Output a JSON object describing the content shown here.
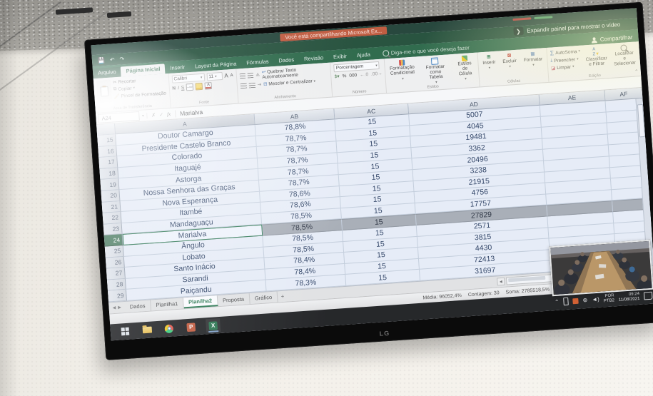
{
  "share_overlay": {
    "sharing_badge": "Você está compartilhando Microsoft Ex...",
    "expand_label": "Expandir painel para mostrar o vídeo",
    "share_label": "Compartilhar"
  },
  "ribbon": {
    "tabs": [
      "Arquivo",
      "Página Inicial",
      "Inserir",
      "Layout da Página",
      "Fórmulas",
      "Dados",
      "Revisão",
      "Exibir",
      "Ajuda"
    ],
    "active_tab": "Página Inicial",
    "tell_me": "Diga-me o que você deseja fazer",
    "clipboard": {
      "cut": "Recortar",
      "copy": "Copiar",
      "painter": "Pincel de Formatação",
      "group": "Área de Transferência"
    },
    "font": {
      "name": "Calibri",
      "size": "11",
      "bold": "N",
      "italic": "I",
      "underline": "S",
      "group": "Fonte"
    },
    "alignment": {
      "wrap": "Quebrar Texto Automaticamente",
      "merge": "Mesclar e Centralizar",
      "group": "Alinhamento"
    },
    "number": {
      "format": "Porcentagem",
      "group": "Número"
    },
    "styles": {
      "conditional": "Formatação\nCondicional",
      "table": "Formatar como\nTabela",
      "cell": "Estilos de\nCélula",
      "group": "Estilos"
    },
    "cells": {
      "insert": "Inserir",
      "delete": "Excluir",
      "format": "Formatar",
      "group": "Células"
    },
    "editing": {
      "autosum": "AutoSoma",
      "fill": "Preencher",
      "clear": "Limpar",
      "sort": "Classificar\ne Filtrar",
      "find": "Localizar e\nSelecionar",
      "group": "Edição"
    }
  },
  "formula_bar": {
    "name_box": "A24",
    "value": "Marialva"
  },
  "grid": {
    "columns": [
      "A",
      "AB",
      "AC",
      "AD",
      "AE",
      "AF"
    ],
    "selected_row": 24,
    "rows": [
      {
        "n": 15,
        "name": "Doutor Camargo",
        "ab": "78,8%",
        "ac": "15",
        "ad": "5007"
      },
      {
        "n": 16,
        "name": "Presidente Castelo Branco",
        "ab": "78,7%",
        "ac": "15",
        "ad": "4045"
      },
      {
        "n": 17,
        "name": "Colorado",
        "ab": "78,7%",
        "ac": "15",
        "ad": "19481"
      },
      {
        "n": 18,
        "name": "Itaguajé",
        "ab": "78,7%",
        "ac": "15",
        "ad": "3362"
      },
      {
        "n": 19,
        "name": "Astorga",
        "ab": "78,7%",
        "ac": "15",
        "ad": "20496"
      },
      {
        "n": 20,
        "name": "Nossa Senhora das Graças",
        "ab": "78,7%",
        "ac": "15",
        "ad": "3238"
      },
      {
        "n": 21,
        "name": "Nova Esperança",
        "ab": "78,6%",
        "ac": "15",
        "ad": "21915"
      },
      {
        "n": 22,
        "name": "Itambé",
        "ab": "78,6%",
        "ac": "15",
        "ad": "4756"
      },
      {
        "n": 23,
        "name": "Mandaguaçu",
        "ab": "78,5%",
        "ac": "15",
        "ad": "17757"
      },
      {
        "n": 24,
        "name": "Marialva",
        "ab": "78,5%",
        "ac": "15",
        "ad": "27829"
      },
      {
        "n": 25,
        "name": "Ângulo",
        "ab": "78,5%",
        "ac": "15",
        "ad": "2571"
      },
      {
        "n": 26,
        "name": "Lobato",
        "ab": "78,5%",
        "ac": "15",
        "ad": "3815"
      },
      {
        "n": 27,
        "name": "Santo Inácio",
        "ab": "78,4%",
        "ac": "15",
        "ad": "4430"
      },
      {
        "n": 28,
        "name": "Sarandi",
        "ab": "78,4%",
        "ac": "15",
        "ad": "72413"
      },
      {
        "n": 29,
        "name": "Paiçandu",
        "ab": "78,3%",
        "ac": "15",
        "ad": "31697"
      }
    ]
  },
  "sheet_tabs": {
    "tabs": [
      "Dados",
      "Planilha1",
      "Planilha2",
      "Proposta",
      "Gráfico"
    ],
    "active": "Planilha2",
    "add": "+"
  },
  "status_bar": {
    "average": "Média: 96052,4%",
    "count": "Contagem: 30",
    "sum": "Soma: 2785518,5%",
    "zoom_level": "190%"
  },
  "taskbar": {
    "lang_line1": "POR",
    "lang_line2": "PTB2",
    "time": "09:24",
    "date": "11/08/2021"
  },
  "tv": {
    "brand": "LG"
  }
}
